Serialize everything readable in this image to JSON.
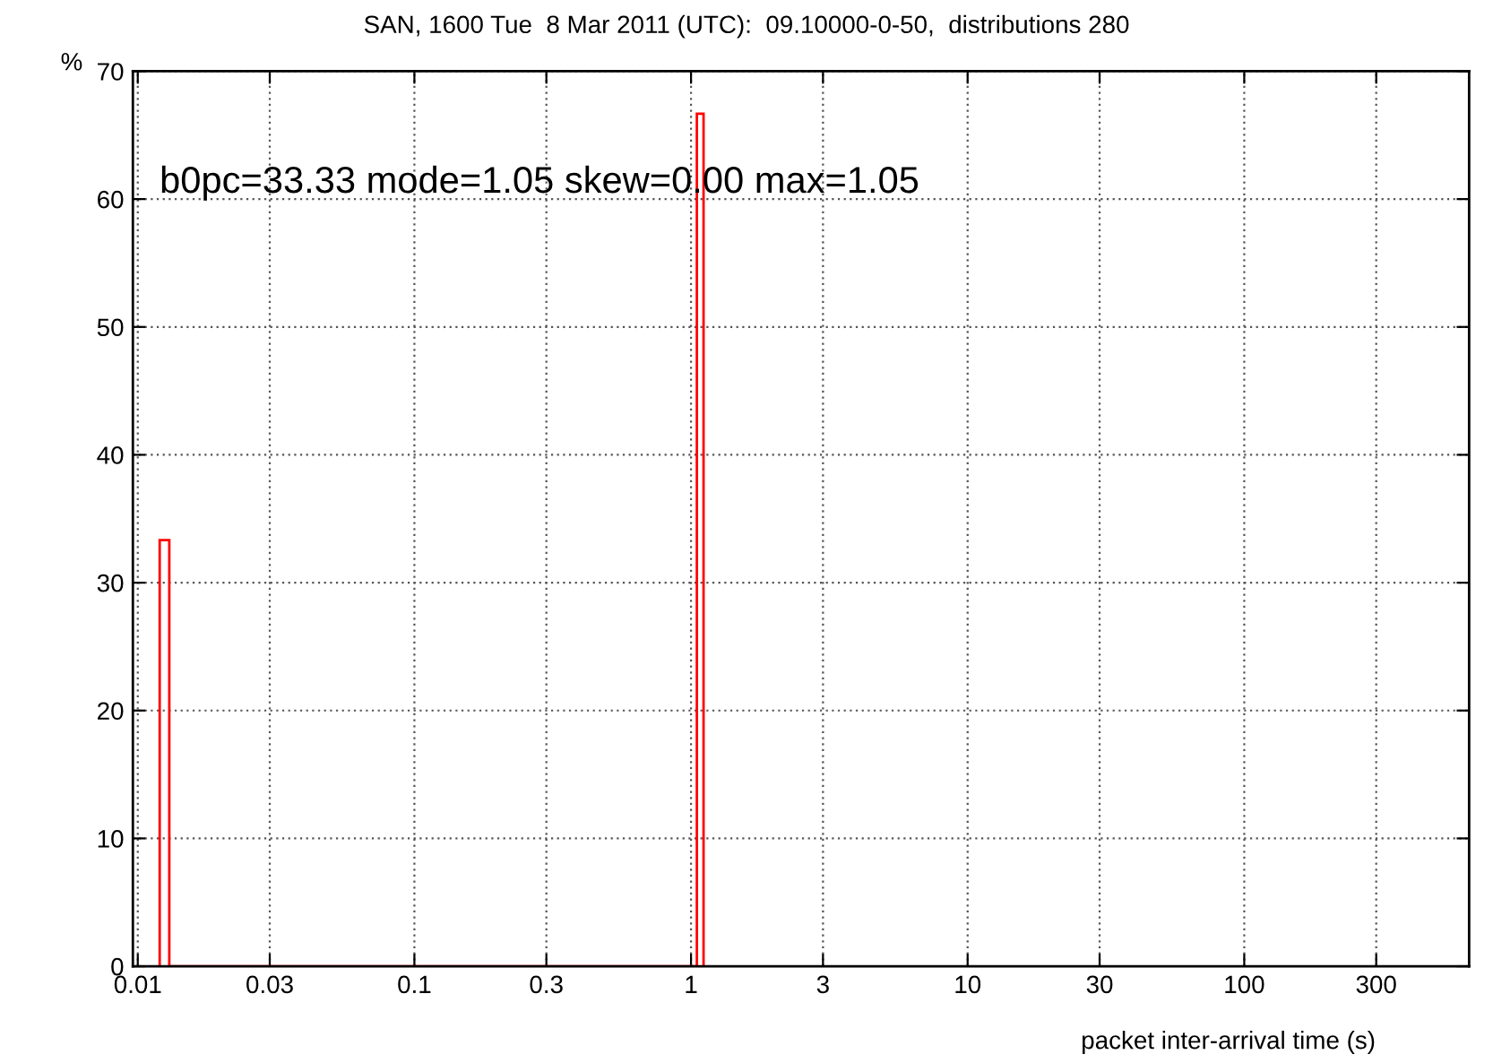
{
  "chart_data": {
    "type": "histogram",
    "title": "SAN, 1600 Tue  8 Mar 2011 (UTC):  09.10000-0-50,  distributions 280",
    "xlabel": "packet inter-arrival time (s)",
    "ylabel": "%",
    "annotations": [
      "b0pc=33.33 mode=1.05 skew=0.00 max=1.05"
    ],
    "bins": [
      0.012,
      0.013,
      1.05,
      1.11
    ],
    "values": [
      33.33,
      0,
      66.67
    ],
    "color": "#ff0000",
    "log": "x",
    "xlim": [
      0.0096,
      650
    ],
    "xticks": [
      0.01,
      0.03,
      0.1,
      0.3,
      1,
      3,
      10,
      30,
      100,
      300
    ],
    "ylim": [
      0,
      70
    ],
    "yticks": [
      0,
      10,
      20,
      30,
      40,
      50,
      60,
      70
    ],
    "grid": true,
    "legend": false
  }
}
